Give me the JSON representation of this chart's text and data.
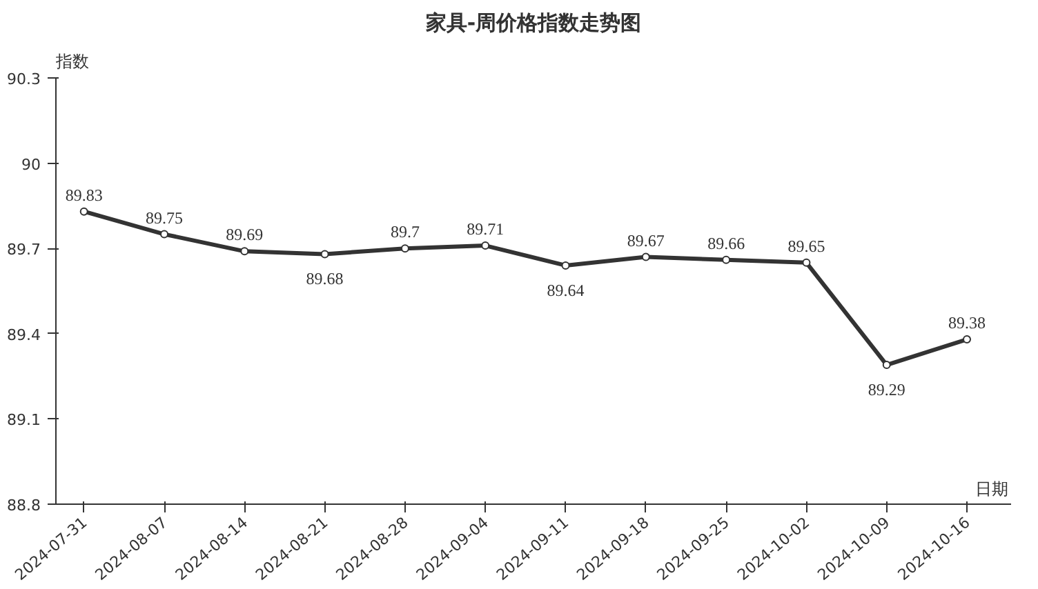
{
  "chart_data": {
    "type": "line",
    "title": "家具-周价格指数走势图",
    "xlabel": "日期",
    "ylabel": "指数",
    "categories": [
      "2024-07-31",
      "2024-08-07",
      "2024-08-14",
      "2024-08-21",
      "2024-08-28",
      "2024-09-04",
      "2024-09-11",
      "2024-09-18",
      "2024-09-25",
      "2024-10-02",
      "2024-10-09",
      "2024-10-16"
    ],
    "series": [
      {
        "color": "#333333",
        "values": [
          89.83,
          89.75,
          89.69,
          89.68,
          89.7,
          89.71,
          89.64,
          89.67,
          89.66,
          89.65,
          89.29,
          89.38
        ]
      }
    ],
    "ylim": [
      88.8,
      90.3
    ],
    "yticks": [
      88.8,
      89.1,
      89.4,
      89.7,
      90,
      90.3
    ],
    "data_labels": true,
    "marker": "circle",
    "line_style": "solid",
    "grid": false
  }
}
